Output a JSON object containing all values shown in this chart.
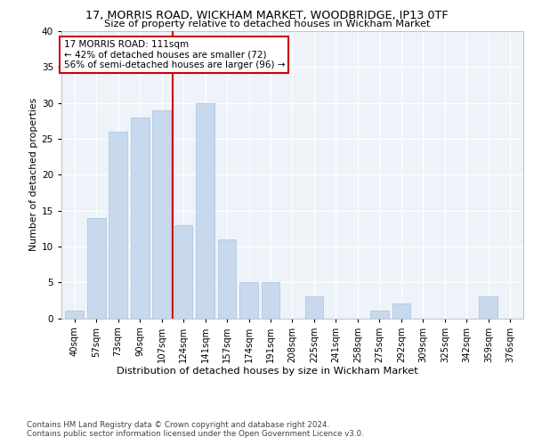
{
  "title_line1": "17, MORRIS ROAD, WICKHAM MARKET, WOODBRIDGE, IP13 0TF",
  "title_line2": "Size of property relative to detached houses in Wickham Market",
  "xlabel": "Distribution of detached houses by size in Wickham Market",
  "ylabel": "Number of detached properties",
  "categories": [
    "40sqm",
    "57sqm",
    "73sqm",
    "90sqm",
    "107sqm",
    "124sqm",
    "141sqm",
    "157sqm",
    "174sqm",
    "191sqm",
    "208sqm",
    "225sqm",
    "241sqm",
    "258sqm",
    "275sqm",
    "292sqm",
    "309sqm",
    "325sqm",
    "342sqm",
    "359sqm",
    "376sqm"
  ],
  "values": [
    1,
    14,
    26,
    28,
    29,
    13,
    30,
    11,
    5,
    5,
    0,
    3,
    0,
    0,
    1,
    2,
    0,
    0,
    0,
    3,
    0
  ],
  "bar_color": "#c8d9ee",
  "bar_edgecolor": "#a8c0db",
  "highlight_bar_index": 4,
  "highlight_color": "#cc0000",
  "annotation_text": "17 MORRIS ROAD: 111sqm\n← 42% of detached houses are smaller (72)\n56% of semi-detached houses are larger (96) →",
  "annotation_box_color": "#ffffff",
  "annotation_box_edgecolor": "#cc0000",
  "ylim": [
    0,
    40
  ],
  "yticks": [
    0,
    5,
    10,
    15,
    20,
    25,
    30,
    35,
    40
  ],
  "footnote1": "Contains HM Land Registry data © Crown copyright and database right 2024.",
  "footnote2": "Contains public sector information licensed under the Open Government Licence v3.0.",
  "background_color": "#eef2f9",
  "grid_color": "#ffffff"
}
